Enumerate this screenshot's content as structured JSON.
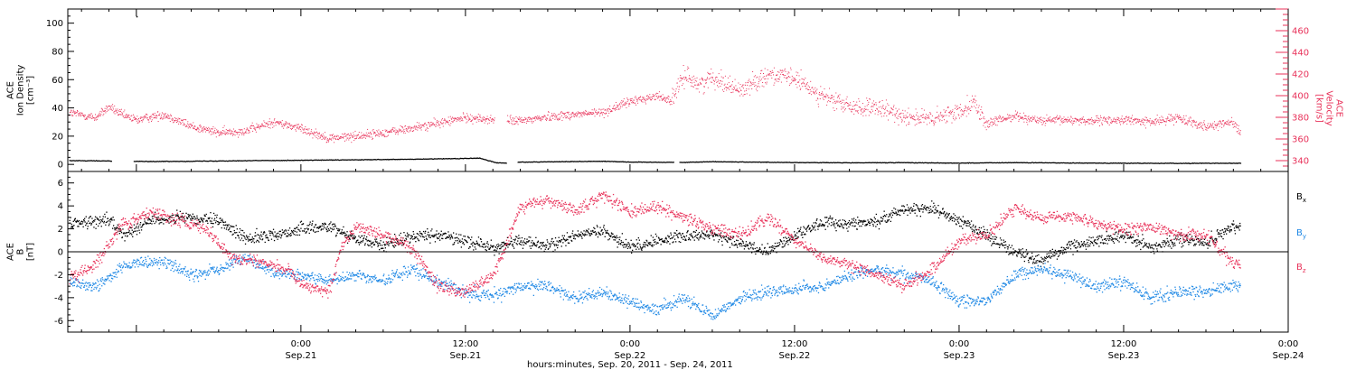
{
  "colors": {
    "black": "#000000",
    "red": "#e8325a",
    "blue": "#1e88e5"
  },
  "x_axis": {
    "title": "hours:minutes, Sep. 20, 2011 - Sep. 24, 2011",
    "range_hours": [
      -17,
      72
    ],
    "ticks": [
      {
        "hour": 0,
        "time": "0:00",
        "date": "Sep.21"
      },
      {
        "hour": 12,
        "time": "12:00",
        "date": "Sep.21"
      },
      {
        "hour": 24,
        "time": "0:00",
        "date": "Sep.22"
      },
      {
        "hour": 36,
        "time": "12:00",
        "date": "Sep.22"
      },
      {
        "hour": 48,
        "time": "0:00",
        "date": "Sep.23"
      },
      {
        "hour": 60,
        "time": "12:00",
        "date": "Sep.23"
      },
      {
        "hour": 72,
        "time": "0:00",
        "date": "Sep.24"
      }
    ]
  },
  "chart_data": [
    {
      "type": "scatter",
      "panel": "top",
      "ylabel_left": [
        "ACE",
        "Ion Density",
        "[cm⁻³]"
      ],
      "ylabel_right": [
        "ACE",
        "Velocity",
        "[km/s]"
      ],
      "ylim_left": [
        -5,
        110
      ],
      "yticks_left": [
        0,
        20,
        40,
        60,
        80,
        100
      ],
      "ylim_right": [
        330,
        480
      ],
      "yticks_right": [
        340,
        360,
        380,
        400,
        420,
        440,
        460
      ],
      "series": [
        {
          "axis": "left",
          "color": "black",
          "style": "dots",
          "points": [
            [
              -16.7,
              3
            ],
            [
              -14,
              2.8
            ],
            [
              -12,
              2.6
            ],
            [
              -11,
              2.4
            ],
            [
              -8,
              2.6
            ],
            [
              -4,
              3
            ],
            [
              0,
              3.3
            ],
            [
              4,
              3.6
            ],
            [
              8,
              4
            ],
            [
              10,
              4.3
            ],
            [
              12,
              4.6
            ],
            [
              13,
              4.8
            ],
            [
              14.2,
              1.5
            ],
            [
              15,
              1.3
            ],
            [
              16,
              2
            ],
            [
              20,
              2.4
            ],
            [
              22,
              2.6
            ],
            [
              23.5,
              2.2
            ],
            [
              24,
              2
            ],
            [
              28,
              1.8
            ],
            [
              30,
              2.3
            ],
            [
              32,
              2.1
            ],
            [
              36,
              1.7
            ],
            [
              40,
              1.5
            ],
            [
              44,
              1.6
            ],
            [
              48,
              1.3
            ],
            [
              52,
              1.6
            ],
            [
              56,
              1.4
            ],
            [
              60,
              1.2
            ],
            [
              64,
              1.1
            ],
            [
              68,
              1.2
            ]
          ],
          "gaps_hours": [
            [
              -13.8,
              -12.2
            ],
            [
              15.0,
              15.8
            ],
            [
              27.2,
              27.6
            ]
          ],
          "outliers": [
            [
              -12,
              105
            ]
          ]
        },
        {
          "axis": "right",
          "color": "red",
          "style": "dots",
          "trend": [
            [
              -17,
              385
            ],
            [
              -15,
              380
            ],
            [
              -14,
              390
            ],
            [
              -13,
              382
            ],
            [
              -12,
              378
            ],
            [
              -10,
              383
            ],
            [
              -8,
              372
            ],
            [
              -6,
              366
            ],
            [
              -4,
              368
            ],
            [
              -2,
              376
            ],
            [
              0,
              370
            ],
            [
              2,
              361
            ],
            [
              4,
              363
            ],
            [
              6,
              366
            ],
            [
              8,
              370
            ],
            [
              10,
              375
            ],
            [
              12,
              380
            ],
            [
              14,
              378
            ],
            [
              16,
              377
            ],
            [
              18,
              381
            ],
            [
              20,
              383
            ],
            [
              22,
              385
            ],
            [
              24,
              395
            ],
            [
              26,
              400
            ],
            [
              27,
              396
            ],
            [
              28,
              420
            ],
            [
              29,
              410
            ],
            [
              30,
              418
            ],
            [
              32,
              405
            ],
            [
              34,
              420
            ],
            [
              36,
              416
            ],
            [
              38,
              400
            ],
            [
              40,
              390
            ],
            [
              42,
              388
            ],
            [
              44,
              382
            ],
            [
              46,
              378
            ],
            [
              48,
              386
            ],
            [
              49,
              395
            ],
            [
              50,
              374
            ],
            [
              52,
              382
            ],
            [
              54,
              377
            ],
            [
              56,
              378
            ],
            [
              58,
              377
            ],
            [
              60,
              378
            ],
            [
              62,
              376
            ],
            [
              64,
              380
            ],
            [
              66,
              372
            ],
            [
              68,
              376
            ],
            [
              68.5,
              365
            ]
          ],
          "gaps_hours": [
            [
              14.1,
              15.0
            ]
          ]
        }
      ]
    },
    {
      "type": "scatter",
      "panel": "bottom",
      "ylabel_left": [
        "ACE",
        "B",
        "[nT]"
      ],
      "ylim": [
        -7,
        7
      ],
      "yticks": [
        -6,
        -4,
        -2,
        0,
        2,
        4,
        6
      ],
      "legend_position": "right",
      "series": [
        {
          "name": "Bx",
          "label_main": "B",
          "label_sub": "x",
          "color": "black",
          "trend": [
            [
              -17,
              2.5
            ],
            [
              -14,
              2.8
            ],
            [
              -13,
              1.5
            ],
            [
              -12,
              2.2
            ],
            [
              -11,
              2.8
            ],
            [
              -9,
              3
            ],
            [
              -6,
              2.7
            ],
            [
              -4,
              1.2
            ],
            [
              -2,
              1.5
            ],
            [
              0,
              2
            ],
            [
              2,
              2.3
            ],
            [
              4,
              1.2
            ],
            [
              6,
              0.6
            ],
            [
              8,
              1.4
            ],
            [
              10,
              1.5
            ],
            [
              12,
              1
            ],
            [
              14,
              0.4
            ],
            [
              16,
              1
            ],
            [
              18,
              0.5
            ],
            [
              20,
              1.5
            ],
            [
              22,
              1.8
            ],
            [
              24,
              0.5
            ],
            [
              26,
              1
            ],
            [
              28,
              1.5
            ],
            [
              30,
              1.5
            ],
            [
              32,
              0.8
            ],
            [
              34,
              0
            ],
            [
              36,
              1.5
            ],
            [
              38,
              2.6
            ],
            [
              40,
              2.5
            ],
            [
              42,
              2.7
            ],
            [
              44,
              3.8
            ],
            [
              46,
              3.8
            ],
            [
              48,
              2.8
            ],
            [
              50,
              1.5
            ],
            [
              52,
              0
            ],
            [
              54,
              -0.7
            ],
            [
              56,
              0.5
            ],
            [
              58,
              1
            ],
            [
              60,
              1.5
            ],
            [
              62,
              0.4
            ],
            [
              64,
              1.2
            ],
            [
              66,
              0.8
            ],
            [
              68,
              2.2
            ]
          ]
        },
        {
          "name": "By",
          "label_main": "B",
          "label_sub": "y",
          "color": "blue",
          "trend": [
            [
              -17,
              -2.5
            ],
            [
              -15,
              -3
            ],
            [
              -13,
              -1.2
            ],
            [
              -10,
              -0.8
            ],
            [
              -8,
              -2
            ],
            [
              -6,
              -1.5
            ],
            [
              -4,
              -0.5
            ],
            [
              -2,
              -1.8
            ],
            [
              0,
              -2
            ],
            [
              2,
              -2.5
            ],
            [
              4,
              -2
            ],
            [
              6,
              -2.5
            ],
            [
              8,
              -1.5
            ],
            [
              10,
              -2.5
            ],
            [
              12,
              -3.5
            ],
            [
              14,
              -3.8
            ],
            [
              16,
              -3
            ],
            [
              18,
              -3
            ],
            [
              20,
              -4
            ],
            [
              22,
              -3.5
            ],
            [
              24,
              -4.3
            ],
            [
              26,
              -5
            ],
            [
              28,
              -4
            ],
            [
              30,
              -5.5
            ],
            [
              32,
              -4
            ],
            [
              34,
              -3.5
            ],
            [
              36,
              -3.2
            ],
            [
              38,
              -3
            ],
            [
              40,
              -2
            ],
            [
              42,
              -1.5
            ],
            [
              44,
              -2
            ],
            [
              46,
              -2.5
            ],
            [
              48,
              -4.3
            ],
            [
              50,
              -4.2
            ],
            [
              52,
              -2
            ],
            [
              54,
              -1.5
            ],
            [
              56,
              -2
            ],
            [
              58,
              -3
            ],
            [
              60,
              -2.5
            ],
            [
              62,
              -4
            ],
            [
              64,
              -3.5
            ],
            [
              66,
              -3.3
            ],
            [
              68,
              -3
            ]
          ]
        },
        {
          "name": "Bz",
          "label_main": "B",
          "label_sub": "z",
          "color": "red",
          "trend": [
            [
              -17,
              -2.5
            ],
            [
              -15,
              -1
            ],
            [
              -13,
              2.5
            ],
            [
              -11,
              3.5
            ],
            [
              -9,
              2.8
            ],
            [
              -7,
              2
            ],
            [
              -5,
              -0.5
            ],
            [
              -3,
              -0.8
            ],
            [
              -1,
              -1.5
            ],
            [
              0,
              -2.8
            ],
            [
              2,
              -3.5
            ],
            [
              3,
              0.8
            ],
            [
              4,
              2.2
            ],
            [
              6,
              1.5
            ],
            [
              8,
              0.5
            ],
            [
              10,
              -3
            ],
            [
              12,
              -3.5
            ],
            [
              14,
              -2
            ],
            [
              16,
              4
            ],
            [
              18,
              4.5
            ],
            [
              20,
              3.5
            ],
            [
              22,
              5
            ],
            [
              24,
              3.5
            ],
            [
              26,
              4
            ],
            [
              28,
              3
            ],
            [
              30,
              2
            ],
            [
              32,
              1.5
            ],
            [
              34,
              3
            ],
            [
              36,
              1
            ],
            [
              38,
              -0.5
            ],
            [
              40,
              -1
            ],
            [
              42,
              -2
            ],
            [
              44,
              -3
            ],
            [
              46,
              -1.5
            ],
            [
              48,
              1
            ],
            [
              50,
              1.5
            ],
            [
              52,
              3.8
            ],
            [
              54,
              3
            ],
            [
              56,
              3.2
            ],
            [
              58,
              2.5
            ],
            [
              60,
              2
            ],
            [
              62,
              2.2
            ],
            [
              64,
              1.5
            ],
            [
              66,
              1.5
            ],
            [
              68,
              -1
            ]
          ]
        }
      ]
    }
  ]
}
